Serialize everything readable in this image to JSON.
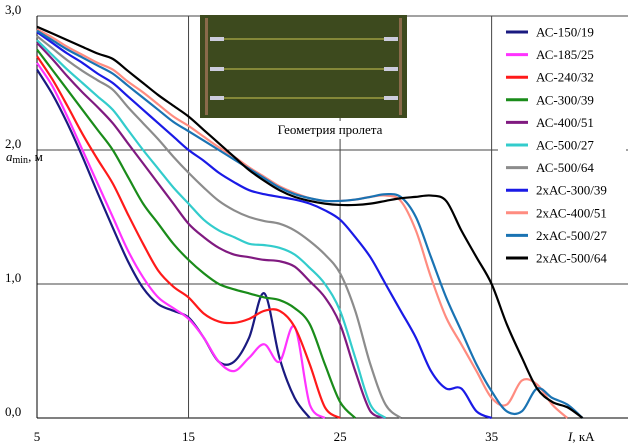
{
  "chart_data": {
    "type": "line",
    "ylabel": "a",
    "ylabel_sub": "min",
    "ylabel_unit": ", м",
    "xlabel": "I",
    "xlabel_unit": ", кА",
    "inset_caption": "Геометрия пролета",
    "xlim": [
      5,
      44
    ],
    "ylim": [
      0,
      3
    ],
    "xticks": [
      5,
      15,
      25,
      35
    ],
    "yticks": [
      {
        "value": 0,
        "label": "0,0"
      },
      {
        "value": 1,
        "label": "1,0"
      },
      {
        "value": 2,
        "label": "2,0"
      },
      {
        "value": 3,
        "label": "3,0"
      }
    ],
    "grid": true,
    "legend": "upper right",
    "x": [
      5,
      6,
      7,
      8,
      9,
      10,
      11,
      12,
      13,
      14,
      15,
      16,
      17,
      18,
      19,
      20,
      21,
      22,
      23,
      24,
      25,
      26,
      27,
      28,
      29,
      30,
      31,
      32,
      33,
      34,
      35,
      36,
      37,
      38,
      39,
      40,
      41
    ],
    "series": [
      {
        "name": "АС-150/19",
        "color": "#1a1a80",
        "values": [
          2.6,
          2.42,
          2.2,
          1.95,
          1.68,
          1.42,
          1.17,
          0.97,
          0.85,
          0.8,
          0.75,
          0.6,
          0.42,
          0.42,
          0.6,
          0.93,
          0.45,
          0.15,
          0,
          null,
          null,
          null,
          null,
          null,
          null,
          null,
          null,
          null,
          null,
          null,
          null,
          null,
          null,
          null,
          null,
          null,
          null
        ]
      },
      {
        "name": "АС-185/25",
        "color": "#ff33ff",
        "values": [
          2.65,
          2.48,
          2.25,
          2.0,
          1.75,
          1.5,
          1.25,
          1.05,
          0.9,
          0.82,
          0.74,
          0.6,
          0.42,
          0.35,
          0.45,
          0.55,
          0.42,
          0.68,
          0.1,
          0,
          null,
          null,
          null,
          null,
          null,
          null,
          null,
          null,
          null,
          null,
          null,
          null,
          null,
          null,
          null,
          null,
          null
        ]
      },
      {
        "name": "АС-240/32",
        "color": "#ff1a1a",
        "values": [
          2.7,
          2.53,
          2.33,
          2.12,
          1.93,
          1.75,
          1.52,
          1.3,
          1.1,
          0.98,
          0.9,
          0.78,
          0.72,
          0.71,
          0.74,
          0.8,
          0.8,
          0.68,
          0.4,
          0.08,
          0,
          null,
          null,
          null,
          null,
          null,
          null,
          null,
          null,
          null,
          null,
          null,
          null,
          null,
          null,
          null,
          null
        ]
      },
      {
        "name": "АС-300/39",
        "color": "#1a8c1a",
        "values": [
          2.75,
          2.6,
          2.45,
          2.3,
          2.15,
          2.0,
          1.8,
          1.6,
          1.45,
          1.3,
          1.18,
          1.08,
          1.0,
          0.96,
          0.93,
          0.9,
          0.88,
          0.82,
          0.7,
          0.4,
          0.12,
          0,
          null,
          null,
          null,
          null,
          null,
          null,
          null,
          null,
          null,
          null,
          null,
          null,
          null,
          null,
          null
        ]
      },
      {
        "name": "АС-400/51",
        "color": "#801a80",
        "values": [
          2.8,
          2.68,
          2.55,
          2.43,
          2.32,
          2.2,
          2.05,
          1.9,
          1.75,
          1.6,
          1.45,
          1.35,
          1.27,
          1.22,
          1.2,
          1.18,
          1.17,
          1.13,
          1.02,
          0.9,
          0.7,
          0.35,
          0.05,
          0,
          null,
          null,
          null,
          null,
          null,
          null,
          null,
          null,
          null,
          null,
          null,
          null,
          null
        ]
      },
      {
        "name": "АС-500/27",
        "color": "#33cccc",
        "values": [
          2.82,
          2.71,
          2.6,
          2.5,
          2.4,
          2.3,
          2.15,
          2.0,
          1.86,
          1.72,
          1.6,
          1.48,
          1.4,
          1.35,
          1.3,
          1.29,
          1.27,
          1.22,
          1.12,
          1.0,
          0.8,
          0.45,
          0.1,
          0,
          null,
          null,
          null,
          null,
          null,
          null,
          null,
          null,
          null,
          null,
          null,
          null,
          null
        ]
      },
      {
        "name": "АС-500/64",
        "color": "#8c8c8c",
        "values": [
          2.85,
          2.76,
          2.67,
          2.59,
          2.52,
          2.45,
          2.32,
          2.2,
          2.08,
          1.95,
          1.83,
          1.72,
          1.62,
          1.55,
          1.5,
          1.47,
          1.45,
          1.4,
          1.32,
          1.22,
          1.08,
          0.8,
          0.4,
          0.1,
          0,
          null,
          null,
          null,
          null,
          null,
          null,
          null,
          null,
          null,
          null,
          null,
          null
        ]
      },
      {
        "name": "2хАС-300/39",
        "color": "#1a1ae6",
        "values": [
          2.88,
          2.8,
          2.72,
          2.65,
          2.57,
          2.5,
          2.4,
          2.3,
          2.2,
          2.1,
          2.0,
          1.92,
          1.83,
          1.76,
          1.7,
          1.67,
          1.65,
          1.63,
          1.6,
          1.55,
          1.48,
          1.35,
          1.2,
          1.0,
          0.8,
          0.6,
          0.35,
          0.22,
          0.22,
          0.05,
          0,
          null,
          null,
          null,
          null,
          null,
          null
        ]
      },
      {
        "name": "2хАС-400/51",
        "color": "#ff8c80",
        "values": [
          2.9,
          2.84,
          2.77,
          2.71,
          2.65,
          2.6,
          2.51,
          2.43,
          2.34,
          2.25,
          2.18,
          2.1,
          2.02,
          1.95,
          1.87,
          1.8,
          1.73,
          1.68,
          1.64,
          1.62,
          1.62,
          1.63,
          1.65,
          1.66,
          1.62,
          1.4,
          1.05,
          0.75,
          0.55,
          0.35,
          0.15,
          0.1,
          0.28,
          0.25,
          0.1,
          0,
          null
        ]
      },
      {
        "name": "2хАС-500/27",
        "color": "#1a73b3",
        "values": [
          2.89,
          2.82,
          2.75,
          2.69,
          2.63,
          2.57,
          2.48,
          2.39,
          2.3,
          2.21,
          2.14,
          2.07,
          2.0,
          1.93,
          1.86,
          1.79,
          1.72,
          1.67,
          1.64,
          1.62,
          1.62,
          1.63,
          1.65,
          1.67,
          1.65,
          1.5,
          1.2,
          0.9,
          0.65,
          0.4,
          0.2,
          0.05,
          0.05,
          0.22,
          0.15,
          0.1,
          0
        ]
      },
      {
        "name": "2хАС-500/64",
        "color": "#000000",
        "values": [
          2.92,
          2.87,
          2.82,
          2.77,
          2.72,
          2.68,
          2.59,
          2.5,
          2.41,
          2.33,
          2.25,
          2.15,
          2.05,
          1.95,
          1.85,
          1.77,
          1.7,
          1.65,
          1.62,
          1.6,
          1.59,
          1.59,
          1.6,
          1.62,
          1.64,
          1.65,
          1.66,
          1.62,
          1.4,
          1.2,
          1.0,
          0.7,
          0.45,
          0.22,
          0.12,
          0.08,
          0
        ]
      }
    ]
  }
}
